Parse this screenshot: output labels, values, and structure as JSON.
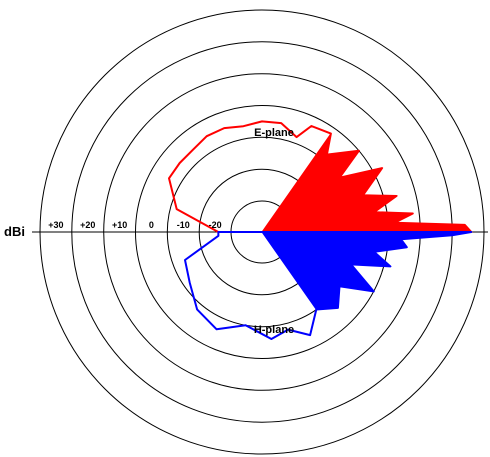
{
  "chart_data": {
    "type": "polar",
    "title": "",
    "unit_label": "dBi",
    "ring_labels": [
      "+30",
      "+20",
      "+10",
      "0",
      "-10",
      "-20"
    ],
    "ring_values": [
      30,
      20,
      10,
      0,
      -10,
      -20,
      -30
    ],
    "radial_range": [
      -30,
      30
    ],
    "grid": true,
    "series": [
      {
        "name": "E-plane",
        "color": "#ff0000",
        "points": [
          [
            180,
            -26
          ],
          [
            165,
            -12
          ],
          [
            150,
            -6
          ],
          [
            140,
            -6
          ],
          [
            130,
            -6
          ],
          [
            120,
            -5
          ],
          [
            110,
            -5
          ],
          [
            100,
            -6
          ],
          [
            90,
            -5
          ],
          [
            80,
            -5
          ],
          [
            70,
            -8
          ],
          [
            65,
            -3
          ],
          [
            55,
            -2
          ],
          [
            50,
            -8
          ],
          [
            40,
            0
          ],
          [
            35,
            -10
          ],
          [
            28,
            3
          ],
          [
            20,
            -6
          ],
          [
            15,
            4
          ],
          [
            10,
            -4
          ],
          [
            7,
            8
          ],
          [
            4,
            2
          ],
          [
            2,
            24
          ],
          [
            0,
            26
          ]
        ]
      },
      {
        "name": "H-plane",
        "color": "#0000ff",
        "points": [
          [
            0,
            26
          ],
          [
            -1,
            20
          ],
          [
            -3,
            4
          ],
          [
            -6,
            6
          ],
          [
            -10,
            -4
          ],
          [
            -15,
            2
          ],
          [
            -20,
            -10
          ],
          [
            -28,
            0
          ],
          [
            -35,
            -10
          ],
          [
            -45,
            -6
          ],
          [
            -55,
            -10
          ],
          [
            -65,
            -4
          ],
          [
            -75,
            -8
          ],
          [
            -85,
            -6
          ],
          [
            -100,
            -10
          ],
          [
            -115,
            -6
          ],
          [
            -130,
            -8
          ],
          [
            -145,
            -12
          ],
          [
            -160,
            -14
          ],
          [
            -175,
            -26
          ],
          [
            -180,
            -26
          ]
        ]
      }
    ]
  }
}
